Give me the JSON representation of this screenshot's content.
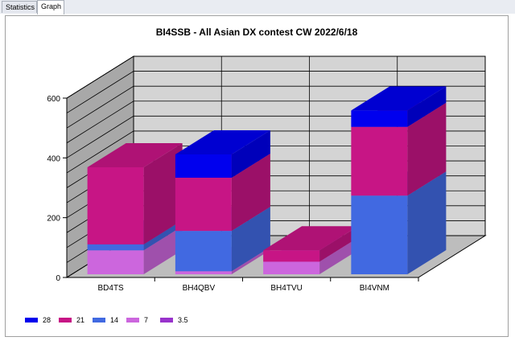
{
  "tabs": [
    {
      "label": "Statistics",
      "active": false
    },
    {
      "label": "Graph",
      "active": true
    }
  ],
  "chart_data": {
    "type": "bar",
    "stacked": true,
    "three_d": true,
    "title": "BI4SSB - All Asian DX contest CW 2022/6/18",
    "categories": [
      "BD4TS",
      "BH4QBV",
      "BH4TVU",
      "BI4VNM"
    ],
    "ylim": [
      0,
      600
    ],
    "yticks": [
      0,
      200,
      400,
      600
    ],
    "grid": true,
    "legend_position": "bottom-left",
    "series": [
      {
        "name": "3.5",
        "color": "#9933cc",
        "values": [
          0,
          0,
          0,
          0
        ]
      },
      {
        "name": "7",
        "color": "#cc66dd",
        "values": [
          80,
          10,
          42,
          0
        ]
      },
      {
        "name": "14",
        "color": "#4169e1",
        "values": [
          20,
          135,
          0,
          263
        ]
      },
      {
        "name": "21",
        "color": "#c71585",
        "values": [
          258,
          178,
          38,
          230
        ]
      },
      {
        "name": "28",
        "color": "#0000ee",
        "values": [
          0,
          78,
          0,
          55
        ]
      }
    ],
    "legend_order": [
      "28",
      "21",
      "14",
      "7",
      "3.5"
    ]
  }
}
